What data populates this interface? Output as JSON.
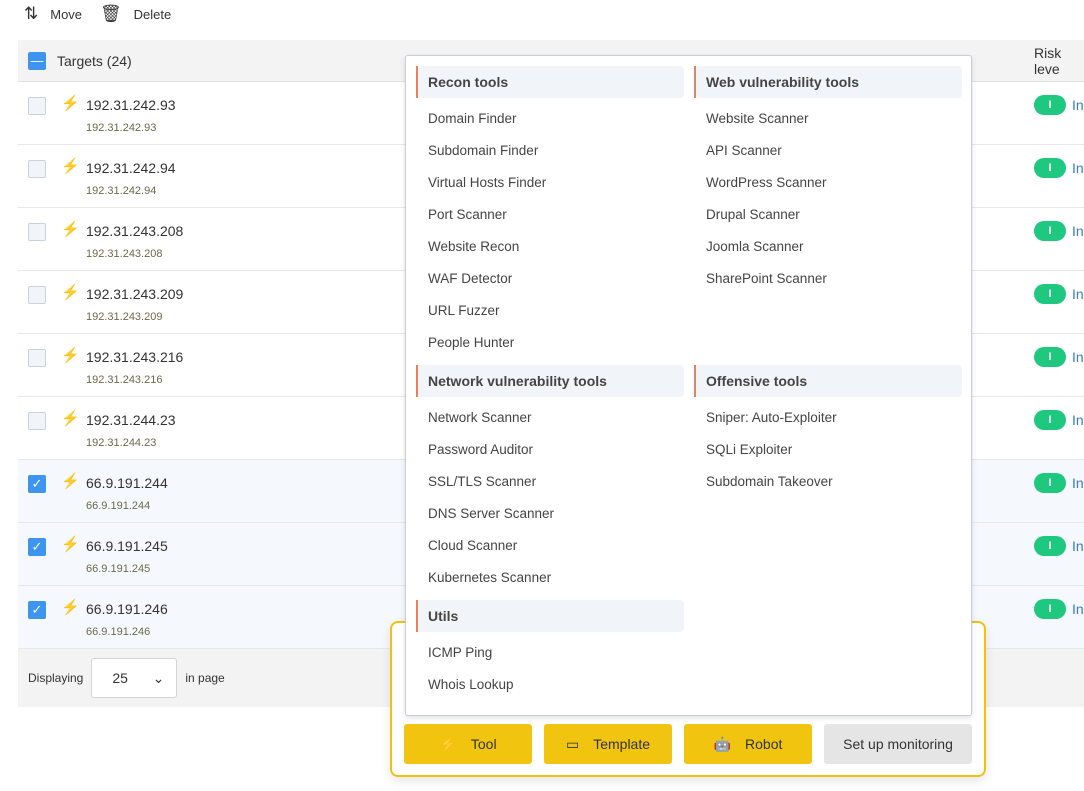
{
  "toolbar": {
    "move": "Move",
    "delete": "Delete"
  },
  "table": {
    "header": "Targets (24)",
    "risk_header": "Risk leve",
    "rows": [
      {
        "ip": "192.31.242.93",
        "sub": "192.31.242.93",
        "checked": false,
        "risk": "I",
        "risk_text": "In"
      },
      {
        "ip": "192.31.242.94",
        "sub": "192.31.242.94",
        "checked": false,
        "risk": "I",
        "risk_text": "In"
      },
      {
        "ip": "192.31.243.208",
        "sub": "192.31.243.208",
        "checked": false,
        "risk": "I",
        "risk_text": "In"
      },
      {
        "ip": "192.31.243.209",
        "sub": "192.31.243.209",
        "checked": false,
        "risk": "I",
        "risk_text": "In"
      },
      {
        "ip": "192.31.243.216",
        "sub": "192.31.243.216",
        "checked": false,
        "risk": "I",
        "risk_text": "In"
      },
      {
        "ip": "192.31.244.23",
        "sub": "192.31.244.23",
        "checked": false,
        "risk": "I",
        "risk_text": "In"
      },
      {
        "ip": "66.9.191.244",
        "sub": "66.9.191.244",
        "checked": true,
        "risk": "I",
        "risk_text": "In"
      },
      {
        "ip": "66.9.191.245",
        "sub": "66.9.191.245",
        "checked": true,
        "risk": "I",
        "risk_text": "In"
      },
      {
        "ip": "66.9.191.246",
        "sub": "66.9.191.246",
        "checked": true,
        "risk": "I",
        "risk_text": "In"
      }
    ]
  },
  "footer": {
    "displaying": "Displaying",
    "page_size": "25",
    "in_page": "in page"
  },
  "actions": {
    "tool": "Tool",
    "template": "Template",
    "robot": "Robot",
    "monitoring": "Set up monitoring"
  },
  "menu": {
    "left": [
      {
        "title": "Recon tools",
        "items": [
          "Domain Finder",
          "Subdomain Finder",
          "Virtual Hosts Finder",
          "Port Scanner",
          "Website Recon",
          "WAF Detector",
          "URL Fuzzer",
          "People Hunter"
        ]
      },
      {
        "title": "Network vulnerability tools",
        "items": [
          "Network Scanner",
          "Password Auditor",
          "SSL/TLS Scanner",
          "DNS Server Scanner",
          "Cloud Scanner",
          "Kubernetes Scanner"
        ]
      },
      {
        "title": "Utils",
        "items": [
          "ICMP Ping",
          "Whois Lookup"
        ]
      }
    ],
    "right": [
      {
        "title": "Web vulnerability tools",
        "items": [
          "Website Scanner",
          "API Scanner",
          "WordPress Scanner",
          "Drupal Scanner",
          "Joomla Scanner",
          "SharePoint Scanner"
        ],
        "pad": 2
      },
      {
        "title": "Offensive tools",
        "items": [
          "Sniper: Auto-Exploiter",
          "SQLi Exploiter",
          "Subdomain Takeover"
        ]
      }
    ]
  },
  "colors": {
    "accent_yellow": "#f1c40f",
    "checkbox_blue": "#3d95f0",
    "risk_green": "#1ec97f",
    "section_border": "#e2855e"
  }
}
